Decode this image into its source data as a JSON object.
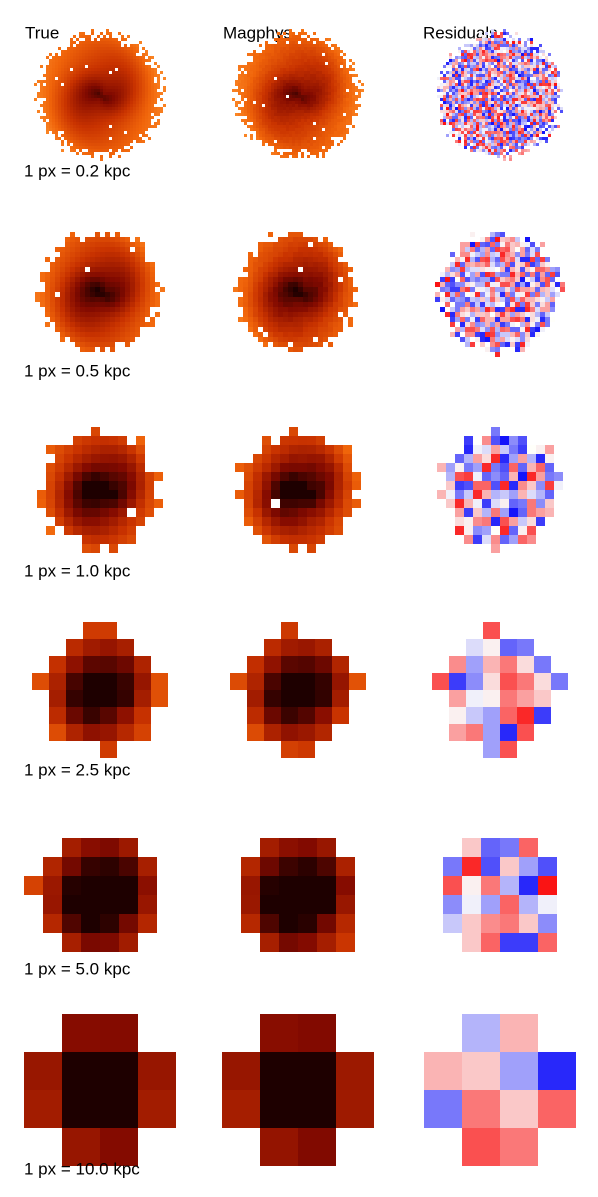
{
  "headers": [
    "True",
    "Magphys",
    "Residuals"
  ],
  "rows": [
    {
      "label": "1 px = 0.2 kpc"
    },
    {
      "label": "1 px = 0.5 kpc"
    },
    {
      "label": "1 px = 1.0 kpc"
    },
    {
      "label": "1 px = 2.5 kpc"
    },
    {
      "label": "1 px = 5.0 kpc"
    },
    {
      "label": "1 px = 10.0 kpc"
    }
  ]
}
